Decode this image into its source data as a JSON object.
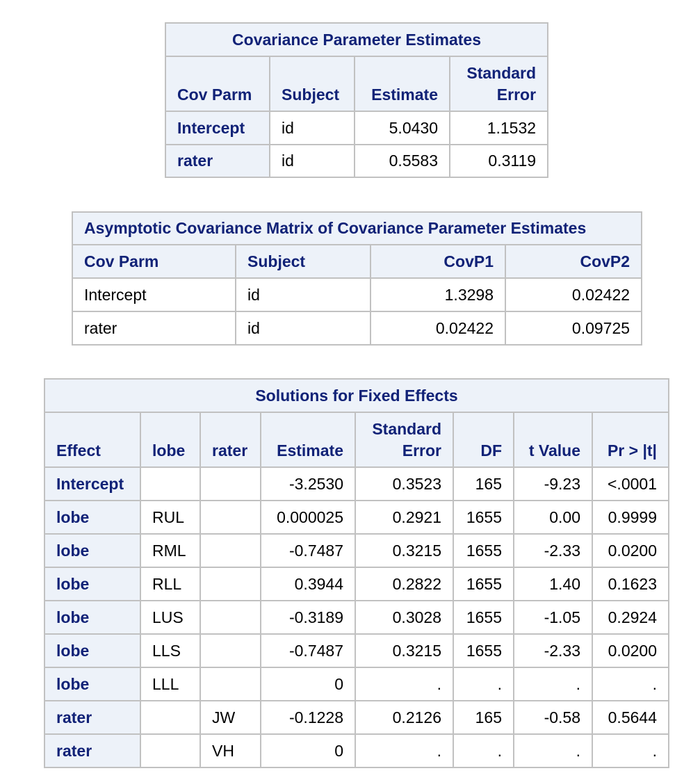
{
  "cov_table": {
    "title": "Covariance Parameter Estimates",
    "headers": {
      "cov_parm": "Cov Parm",
      "subject": "Subject",
      "estimate": "Estimate",
      "std_error_line1": "Standard",
      "std_error_line2": "Error"
    },
    "rows": [
      {
        "cov_parm": "Intercept",
        "subject": "id",
        "estimate": "5.0430",
        "std_error": "1.1532"
      },
      {
        "cov_parm": "rater",
        "subject": "id",
        "estimate": "0.5583",
        "std_error": "0.3119"
      }
    ]
  },
  "asym_table": {
    "title": "Asymptotic Covariance Matrix of Covariance Parameter Estimates",
    "headers": {
      "cov_parm": "Cov Parm",
      "subject": "Subject",
      "covp1": "CovP1",
      "covp2": "CovP2"
    },
    "rows": [
      {
        "cov_parm": "Intercept",
        "subject": "id",
        "covp1": "1.3298",
        "covp2": "0.02422"
      },
      {
        "cov_parm": "rater",
        "subject": "id",
        "covp1": "0.02422",
        "covp2": "0.09725"
      }
    ]
  },
  "fixed_table": {
    "title": "Solutions for Fixed Effects",
    "headers": {
      "effect": "Effect",
      "lobe": "lobe",
      "rater": "rater",
      "estimate": "Estimate",
      "std_error_line1": "Standard",
      "std_error_line2": "Error",
      "df": "DF",
      "t_value": "t Value",
      "pr": "Pr > |t|"
    },
    "rows": [
      {
        "effect": "Intercept",
        "lobe": "",
        "rater": "",
        "estimate": "-3.2530",
        "std_error": "0.3523",
        "df": "165",
        "t_value": "-9.23",
        "pr": "<.0001"
      },
      {
        "effect": "lobe",
        "lobe": "RUL",
        "rater": "",
        "estimate": "0.000025",
        "std_error": "0.2921",
        "df": "1655",
        "t_value": "0.00",
        "pr": "0.9999"
      },
      {
        "effect": "lobe",
        "lobe": "RML",
        "rater": "",
        "estimate": "-0.7487",
        "std_error": "0.3215",
        "df": "1655",
        "t_value": "-2.33",
        "pr": "0.0200"
      },
      {
        "effect": "lobe",
        "lobe": "RLL",
        "rater": "",
        "estimate": "0.3944",
        "std_error": "0.2822",
        "df": "1655",
        "t_value": "1.40",
        "pr": "0.1623"
      },
      {
        "effect": "lobe",
        "lobe": "LUS",
        "rater": "",
        "estimate": "-0.3189",
        "std_error": "0.3028",
        "df": "1655",
        "t_value": "-1.05",
        "pr": "0.2924"
      },
      {
        "effect": "lobe",
        "lobe": "LLS",
        "rater": "",
        "estimate": "-0.7487",
        "std_error": "0.3215",
        "df": "1655",
        "t_value": "-2.33",
        "pr": "0.0200"
      },
      {
        "effect": "lobe",
        "lobe": "LLL",
        "rater": "",
        "estimate": "0",
        "std_error": ".",
        "df": ".",
        "t_value": ".",
        "pr": "."
      },
      {
        "effect": "rater",
        "lobe": "",
        "rater": "JW",
        "estimate": "-0.1228",
        "std_error": "0.2126",
        "df": "165",
        "t_value": "-0.58",
        "pr": "0.5644"
      },
      {
        "effect": "rater",
        "lobe": "",
        "rater": "VH",
        "estimate": "0",
        "std_error": ".",
        "df": ".",
        "t_value": ".",
        "pr": "."
      }
    ]
  }
}
